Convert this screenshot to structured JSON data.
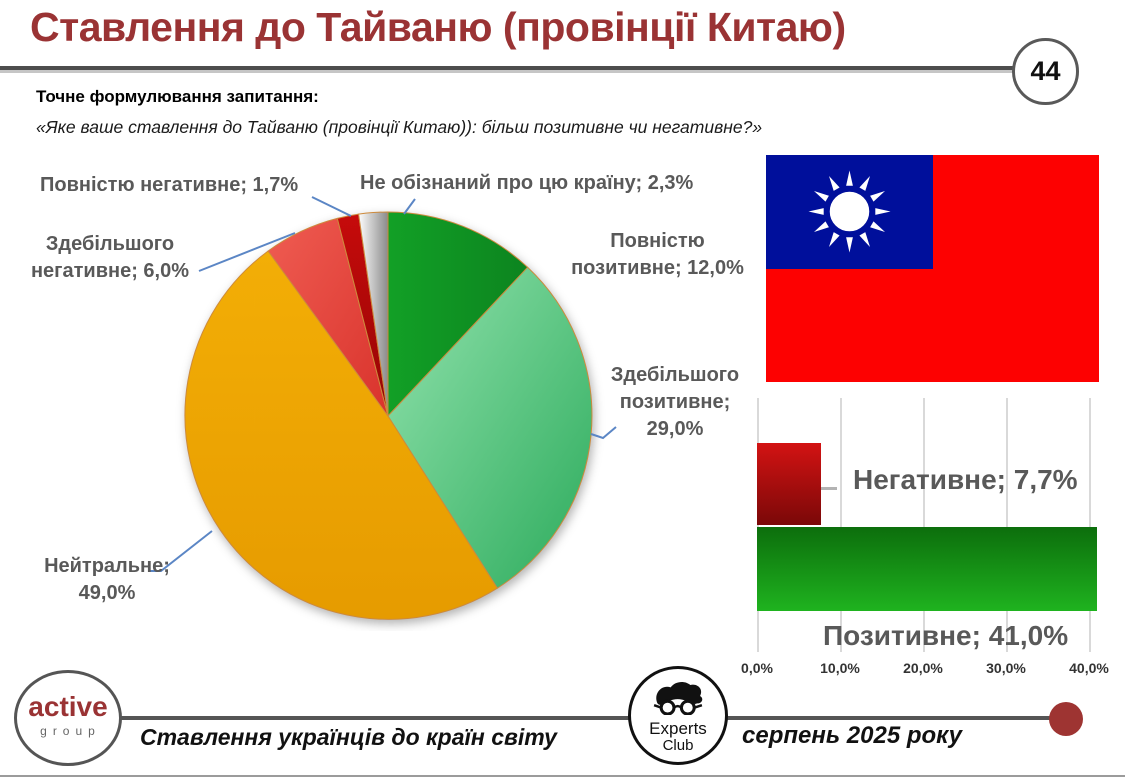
{
  "slide": {
    "title": "Ставлення до Тайваню (провінції Китаю)",
    "page_number": "44",
    "question_label": "Точне формулювання запитання:",
    "question_quote": "«Яке ваше ставлення до Тайваню (провінції Китаю)): більш позитивне чи негативне?»",
    "accent_color": "#9a3334"
  },
  "chart_data": [
    {
      "type": "pie",
      "order": "clockwise-from-12-o-clock",
      "unit": "%",
      "slices": [
        {
          "id": "fully-positive",
          "label": "Повністю позитивне",
          "value": 12.0,
          "display": "Повністю\nпозитивне; 12,0%",
          "color_from": "#12a026",
          "color_to": "#0c841f",
          "dir": [
            0,
            0,
            1,
            0
          ]
        },
        {
          "id": "mostly-positive",
          "label": "Здебільшого позитивне",
          "value": 29.0,
          "display": "Здебільшого\nпозитивне;\n29,0%",
          "color_from": "#93e3ae",
          "color_to": "#2cab5c",
          "dir": [
            0,
            0,
            1,
            1
          ]
        },
        {
          "id": "neutral",
          "label": "Нейтральне",
          "value": 49.0,
          "display": "Нейтральне;\n49,0%",
          "color_from": "#f3ae06",
          "color_to": "#e69b00",
          "dir": [
            0,
            0,
            0,
            1
          ]
        },
        {
          "id": "mostly-negative",
          "label": "Здебільшого негативне",
          "value": 6.0,
          "display": "Здебільшого\nнегативне; 6,0%",
          "color_from": "#ef5c52",
          "color_to": "#d9332c",
          "dir": [
            0,
            0,
            1,
            1
          ]
        },
        {
          "id": "fully-negative",
          "label": "Повністю негативне",
          "value": 1.7,
          "display": "Повністю негативне; 1,7%",
          "color_from": "#c60b0b",
          "color_to": "#950404",
          "dir": [
            0,
            0,
            0,
            1
          ]
        },
        {
          "id": "unaware",
          "label": "Не обізнаний про цю країну",
          "value": 2.3,
          "display": "Не обізнаний про цю країну; 2,3%",
          "color_from": "#fdfdfd",
          "color_to": "#8a8a8a",
          "dir": [
            0,
            0,
            1,
            0
          ]
        }
      ],
      "slice_stroke": "#cd8a3c",
      "leader_line_color": "#5b86c5"
    },
    {
      "type": "bar",
      "orientation": "horizontal",
      "categories": [
        "Негативне",
        "Позитивне"
      ],
      "values": [
        7.7,
        41.0
      ],
      "labels": [
        "Негативне; 7,7%",
        "Позитивне; 41,0%"
      ],
      "colors": [
        {
          "from": "#d31313",
          "to": "#7a0808"
        },
        {
          "from": "#0c6e0c",
          "to": "#1fb31f"
        }
      ],
      "x_ticks": [
        "0,0%",
        "10,0%",
        "20,0%",
        "30,0%",
        "40,0%"
      ],
      "xlim": [
        0,
        40
      ],
      "grid": true
    }
  ],
  "flag": {
    "name": "Taiwan flag",
    "field_color": "#fd0101",
    "canton_color": "#000f9b",
    "sun_color": "#ffffff"
  },
  "footer": {
    "logo_word1": "active",
    "logo_word2": "group",
    "caption": "Ставлення українців до країн світу",
    "experts_line1": "Experts",
    "experts_line2": "Club",
    "date": "серпень 2025 року"
  }
}
